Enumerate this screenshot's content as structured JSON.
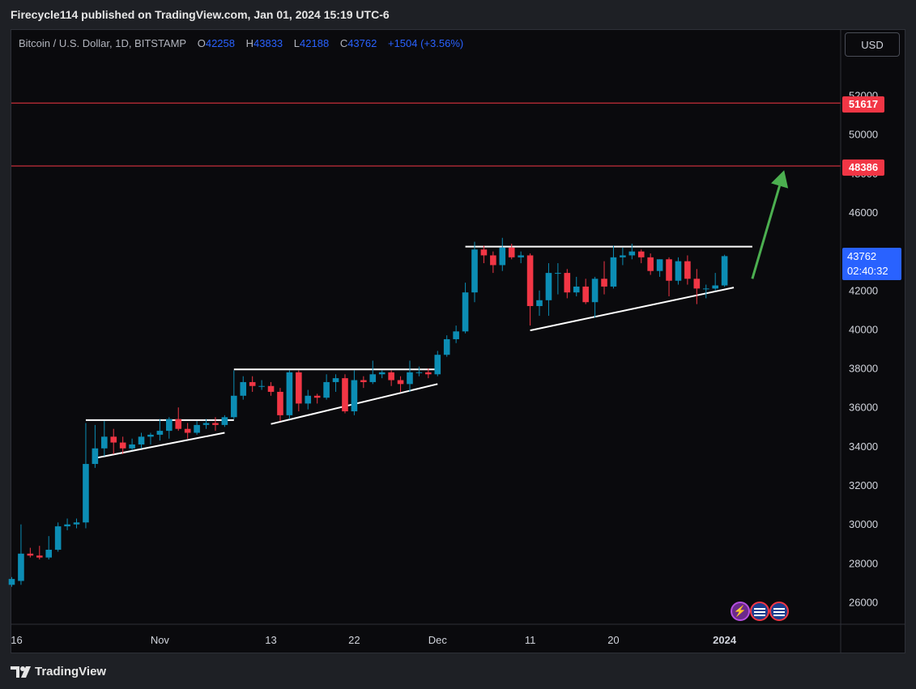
{
  "header": {
    "published": "Firecycle114 published on TradingView.com, Jan 01, 2024 15:19 UTC-6"
  },
  "legend": {
    "symbol": "Bitcoin / U.S. Dollar, 1D, BITSTAMP",
    "o_label": "O",
    "o": "42258",
    "h_label": "H",
    "h": "43833",
    "l_label": "L",
    "l": "42188",
    "c_label": "C",
    "c": "43762",
    "change": "+1504 (+3.56%)"
  },
  "currency_button": "USD",
  "price_labels": {
    "level1": "51617",
    "level2": "48386",
    "current": "43762",
    "countdown": "02:40:32"
  },
  "footer": {
    "brand": "TradingView"
  },
  "badges": {
    "lightning": "⚡"
  },
  "colors": {
    "up": "#089981",
    "up_body": "#0c8db4",
    "down": "#f23645",
    "level_line": "#f23645",
    "arrow": "#4caf50",
    "trendline": "#ffffff",
    "background": "#0a0a0d"
  },
  "chart_data": {
    "type": "candlestick",
    "symbol": "Bitcoin / U.S. Dollar",
    "interval": "1D",
    "ylim": [
      24700,
      54300
    ],
    "y_ticks": [
      26000,
      28000,
      30000,
      32000,
      34000,
      36000,
      38000,
      40000,
      42000,
      44000,
      46000,
      48000,
      50000,
      52000
    ],
    "x_ticks": [
      {
        "label": "16",
        "date": "2023-10-16"
      },
      {
        "label": "Nov",
        "date": "2023-11-01"
      },
      {
        "label": "13",
        "date": "2023-11-13"
      },
      {
        "label": "22",
        "date": "2023-11-22"
      },
      {
        "label": "Dec",
        "date": "2023-12-01"
      },
      {
        "label": "11",
        "date": "2023-12-11"
      },
      {
        "label": "20",
        "date": "2023-12-20"
      },
      {
        "label": "2024",
        "date": "2024-01-01"
      }
    ],
    "horizontal_levels": [
      51617,
      48386
    ],
    "ohlc": [
      {
        "date": "2023-10-16",
        "o": 26900,
        "h": 27300,
        "l": 26800,
        "c": 27200
      },
      {
        "date": "2023-10-17",
        "o": 27100,
        "h": 30000,
        "l": 26900,
        "c": 28500
      },
      {
        "date": "2023-10-18",
        "o": 28500,
        "h": 28800,
        "l": 28300,
        "c": 28400
      },
      {
        "date": "2023-10-19",
        "o": 28400,
        "h": 28900,
        "l": 28200,
        "c": 28300
      },
      {
        "date": "2023-10-20",
        "o": 28300,
        "h": 29400,
        "l": 28200,
        "c": 28700
      },
      {
        "date": "2023-10-21",
        "o": 28700,
        "h": 30100,
        "l": 28600,
        "c": 29900
      },
      {
        "date": "2023-10-22",
        "o": 29900,
        "h": 30300,
        "l": 29700,
        "c": 30000
      },
      {
        "date": "2023-10-23",
        "o": 30000,
        "h": 30300,
        "l": 29800,
        "c": 30100
      },
      {
        "date": "2023-10-24",
        "o": 30100,
        "h": 35200,
        "l": 29800,
        "c": 33100
      },
      {
        "date": "2023-10-25",
        "o": 33100,
        "h": 35100,
        "l": 32900,
        "c": 33900
      },
      {
        "date": "2023-10-26",
        "o": 33900,
        "h": 35300,
        "l": 33500,
        "c": 34500
      },
      {
        "date": "2023-10-27",
        "o": 34500,
        "h": 34900,
        "l": 33600,
        "c": 34200
      },
      {
        "date": "2023-10-28",
        "o": 34200,
        "h": 34500,
        "l": 33600,
        "c": 33900
      },
      {
        "date": "2023-10-29",
        "o": 33900,
        "h": 34400,
        "l": 33800,
        "c": 34100
      },
      {
        "date": "2023-10-30",
        "o": 34100,
        "h": 34700,
        "l": 33900,
        "c": 34500
      },
      {
        "date": "2023-10-31",
        "o": 34500,
        "h": 34700,
        "l": 34100,
        "c": 34600
      },
      {
        "date": "2023-11-01",
        "o": 34600,
        "h": 35400,
        "l": 34300,
        "c": 34800
      },
      {
        "date": "2023-11-02",
        "o": 34800,
        "h": 35500,
        "l": 34400,
        "c": 35400
      },
      {
        "date": "2023-11-03",
        "o": 35400,
        "h": 36000,
        "l": 34800,
        "c": 34900
      },
      {
        "date": "2023-11-04",
        "o": 34900,
        "h": 35200,
        "l": 34400,
        "c": 34700
      },
      {
        "date": "2023-11-05",
        "o": 34700,
        "h": 35300,
        "l": 34600,
        "c": 35100
      },
      {
        "date": "2023-11-06",
        "o": 35100,
        "h": 35400,
        "l": 34900,
        "c": 35200
      },
      {
        "date": "2023-11-07",
        "o": 35200,
        "h": 35500,
        "l": 34800,
        "c": 35100
      },
      {
        "date": "2023-11-08",
        "o": 35100,
        "h": 35600,
        "l": 35000,
        "c": 35500
      },
      {
        "date": "2023-11-09",
        "o": 35500,
        "h": 37900,
        "l": 35400,
        "c": 36600
      },
      {
        "date": "2023-11-10",
        "o": 36600,
        "h": 37600,
        "l": 36400,
        "c": 37300
      },
      {
        "date": "2023-11-11",
        "o": 37300,
        "h": 37600,
        "l": 36800,
        "c": 37100
      },
      {
        "date": "2023-11-12",
        "o": 37100,
        "h": 37400,
        "l": 36900,
        "c": 37100
      },
      {
        "date": "2023-11-13",
        "o": 37100,
        "h": 37300,
        "l": 36600,
        "c": 36800
      },
      {
        "date": "2023-11-14",
        "o": 36800,
        "h": 37000,
        "l": 35300,
        "c": 35600
      },
      {
        "date": "2023-11-15",
        "o": 35600,
        "h": 37900,
        "l": 35400,
        "c": 37800
      },
      {
        "date": "2023-11-16",
        "o": 37800,
        "h": 37900,
        "l": 35800,
        "c": 36200
      },
      {
        "date": "2023-11-17",
        "o": 36200,
        "h": 36900,
        "l": 35900,
        "c": 36600
      },
      {
        "date": "2023-11-18",
        "o": 36600,
        "h": 36700,
        "l": 36200,
        "c": 36500
      },
      {
        "date": "2023-11-19",
        "o": 36500,
        "h": 37700,
        "l": 36400,
        "c": 37300
      },
      {
        "date": "2023-11-20",
        "o": 37300,
        "h": 37700,
        "l": 36800,
        "c": 37500
      },
      {
        "date": "2023-11-21",
        "o": 37500,
        "h": 37700,
        "l": 35700,
        "c": 35800
      },
      {
        "date": "2023-11-22",
        "o": 35800,
        "h": 37900,
        "l": 35600,
        "c": 37400
      },
      {
        "date": "2023-11-23",
        "o": 37400,
        "h": 37600,
        "l": 37000,
        "c": 37300
      },
      {
        "date": "2023-11-24",
        "o": 37300,
        "h": 38400,
        "l": 37200,
        "c": 37700
      },
      {
        "date": "2023-11-25",
        "o": 37700,
        "h": 37900,
        "l": 37500,
        "c": 37800
      },
      {
        "date": "2023-11-26",
        "o": 37800,
        "h": 37900,
        "l": 37100,
        "c": 37400
      },
      {
        "date": "2023-11-27",
        "o": 37400,
        "h": 37600,
        "l": 36800,
        "c": 37200
      },
      {
        "date": "2023-11-28",
        "o": 37200,
        "h": 38400,
        "l": 36800,
        "c": 37800
      },
      {
        "date": "2023-11-29",
        "o": 37800,
        "h": 38100,
        "l": 37600,
        "c": 37800
      },
      {
        "date": "2023-11-30",
        "o": 37800,
        "h": 38000,
        "l": 37500,
        "c": 37700
      },
      {
        "date": "2023-12-01",
        "o": 37700,
        "h": 38900,
        "l": 37600,
        "c": 38700
      },
      {
        "date": "2023-12-02",
        "o": 38700,
        "h": 39700,
        "l": 38600,
        "c": 39500
      },
      {
        "date": "2023-12-03",
        "o": 39500,
        "h": 40200,
        "l": 39300,
        "c": 39900
      },
      {
        "date": "2023-12-04",
        "o": 39900,
        "h": 42400,
        "l": 39800,
        "c": 41900
      },
      {
        "date": "2023-12-05",
        "o": 41900,
        "h": 44500,
        "l": 41400,
        "c": 44100
      },
      {
        "date": "2023-12-06",
        "o": 44100,
        "h": 44300,
        "l": 43400,
        "c": 43800
      },
      {
        "date": "2023-12-07",
        "o": 43800,
        "h": 44000,
        "l": 42900,
        "c": 43300
      },
      {
        "date": "2023-12-08",
        "o": 43300,
        "h": 44700,
        "l": 43000,
        "c": 44200
      },
      {
        "date": "2023-12-09",
        "o": 44200,
        "h": 44400,
        "l": 43600,
        "c": 43700
      },
      {
        "date": "2023-12-10",
        "o": 43700,
        "h": 44000,
        "l": 43400,
        "c": 43800
      },
      {
        "date": "2023-12-11",
        "o": 43800,
        "h": 43900,
        "l": 40200,
        "c": 41200
      },
      {
        "date": "2023-12-12",
        "o": 41200,
        "h": 42000,
        "l": 40700,
        "c": 41500
      },
      {
        "date": "2023-12-13",
        "o": 41500,
        "h": 43400,
        "l": 40700,
        "c": 42900
      },
      {
        "date": "2023-12-14",
        "o": 42900,
        "h": 43400,
        "l": 41800,
        "c": 42900
      },
      {
        "date": "2023-12-15",
        "o": 42900,
        "h": 43100,
        "l": 41600,
        "c": 41900
      },
      {
        "date": "2023-12-16",
        "o": 41900,
        "h": 42700,
        "l": 41700,
        "c": 42200
      },
      {
        "date": "2023-12-17",
        "o": 42200,
        "h": 42600,
        "l": 41300,
        "c": 41400
      },
      {
        "date": "2023-12-18",
        "o": 41400,
        "h": 42700,
        "l": 40600,
        "c": 42600
      },
      {
        "date": "2023-12-19",
        "o": 42600,
        "h": 43500,
        "l": 41800,
        "c": 42200
      },
      {
        "date": "2023-12-20",
        "o": 42200,
        "h": 44300,
        "l": 42100,
        "c": 43700
      },
      {
        "date": "2023-12-21",
        "o": 43700,
        "h": 44200,
        "l": 43300,
        "c": 43800
      },
      {
        "date": "2023-12-22",
        "o": 43800,
        "h": 44400,
        "l": 43600,
        "c": 44000
      },
      {
        "date": "2023-12-23",
        "o": 44000,
        "h": 44100,
        "l": 43400,
        "c": 43700
      },
      {
        "date": "2023-12-24",
        "o": 43700,
        "h": 43900,
        "l": 42800,
        "c": 43000
      },
      {
        "date": "2023-12-25",
        "o": 43000,
        "h": 43600,
        "l": 42700,
        "c": 43600
      },
      {
        "date": "2023-12-26",
        "o": 43600,
        "h": 43700,
        "l": 41700,
        "c": 42500
      },
      {
        "date": "2023-12-27",
        "o": 42500,
        "h": 43700,
        "l": 42300,
        "c": 43500
      },
      {
        "date": "2023-12-28",
        "o": 43500,
        "h": 43800,
        "l": 42300,
        "c": 42600
      },
      {
        "date": "2023-12-29",
        "o": 42600,
        "h": 43100,
        "l": 41300,
        "c": 42100
      },
      {
        "date": "2023-12-30",
        "o": 42100,
        "h": 42300,
        "l": 41600,
        "c": 42100
      },
      {
        "date": "2023-12-31",
        "o": 42100,
        "h": 42900,
        "l": 42000,
        "c": 42258
      },
      {
        "date": "2024-01-01",
        "o": 42258,
        "h": 43833,
        "l": 42188,
        "c": 43762
      }
    ],
    "trendlines": [
      {
        "start": {
          "date": "2023-10-24",
          "price": 35350
        },
        "end": {
          "date": "2023-11-09",
          "price": 35350
        }
      },
      {
        "start": {
          "date": "2023-10-25",
          "price": 33400
        },
        "end": {
          "date": "2023-11-08",
          "price": 34700
        }
      },
      {
        "start": {
          "date": "2023-11-09",
          "price": 37950
        },
        "end": {
          "date": "2023-12-01",
          "price": 37950
        }
      },
      {
        "start": {
          "date": "2023-11-13",
          "price": 35150
        },
        "end": {
          "date": "2023-12-01",
          "price": 37200
        }
      },
      {
        "start": {
          "date": "2023-12-04",
          "price": 44250
        },
        "end": {
          "date": "2024-01-04",
          "price": 44250
        }
      },
      {
        "start": {
          "date": "2023-12-11",
          "price": 39950
        },
        "end": {
          "date": "2024-01-02",
          "price": 42150
        }
      }
    ],
    "arrow": {
      "start": {
        "date": "2024-01-04",
        "price": 42600
      },
      "end": {
        "date": "2024-01-07",
        "price": 48000
      }
    }
  }
}
